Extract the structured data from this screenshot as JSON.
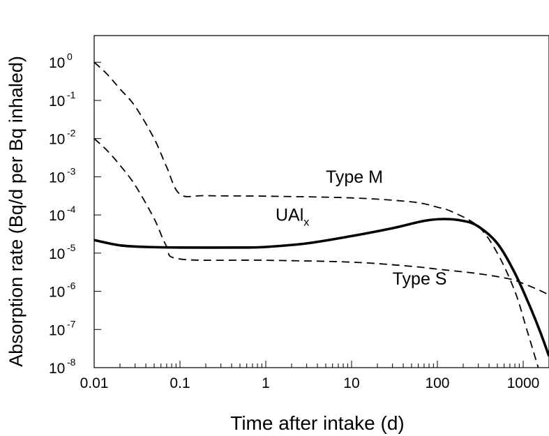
{
  "chart_data": {
    "type": "line",
    "title": "",
    "xlabel": "Time after intake (d)",
    "ylabel": "Absorption rate (Bq/d per Bq inhaled)",
    "x_scale": "log",
    "y_scale": "log",
    "xlim": [
      0.01,
      2000
    ],
    "ylim": [
      1e-08,
      5
    ],
    "grid": false,
    "x_ticks": [
      {
        "value": 0.01,
        "label": "0.01"
      },
      {
        "value": 0.1,
        "label": "0.1"
      },
      {
        "value": 1,
        "label": "1"
      },
      {
        "value": 10,
        "label": "10"
      },
      {
        "value": 100,
        "label": "100"
      },
      {
        "value": 1000,
        "label": "1000"
      }
    ],
    "y_ticks": [
      {
        "value": 1,
        "base": "10",
        "exp": "0"
      },
      {
        "value": 0.1,
        "base": "10",
        "exp": "-1"
      },
      {
        "value": 0.01,
        "base": "10",
        "exp": "-2"
      },
      {
        "value": 0.001,
        "base": "10",
        "exp": "-3"
      },
      {
        "value": 0.0001,
        "base": "10",
        "exp": "-4"
      },
      {
        "value": 1e-05,
        "base": "10",
        "exp": "-5"
      },
      {
        "value": 1e-06,
        "base": "10",
        "exp": "-6"
      },
      {
        "value": 1e-07,
        "base": "10",
        "exp": "-7"
      },
      {
        "value": 1e-08,
        "base": "10",
        "exp": "-8"
      }
    ],
    "series": [
      {
        "name": "Type M",
        "label": {
          "text": "Type M",
          "at": [
            5,
            0.0007
          ]
        },
        "style": "dashed",
        "points": [
          [
            0.01,
            1.0
          ],
          [
            0.014,
            0.5
          ],
          [
            0.02,
            0.2
          ],
          [
            0.03,
            0.07
          ],
          [
            0.05,
            0.01
          ],
          [
            0.07,
            0.0018
          ],
          [
            0.1,
            0.00035
          ],
          [
            0.2,
            0.00032
          ],
          [
            1,
            0.00031
          ],
          [
            10,
            0.00028
          ],
          [
            50,
            0.00022
          ],
          [
            100,
            0.00016
          ],
          [
            150,
            0.00012
          ],
          [
            300,
            5e-05
          ],
          [
            500,
            1e-05
          ],
          [
            800,
            1e-06
          ],
          [
            1100,
            1e-07
          ],
          [
            1500,
            1e-08
          ]
        ]
      },
      {
        "name": "Type S",
        "label": {
          "text": "Type S",
          "at": [
            30,
            1.5e-06
          ]
        },
        "style": "dashed",
        "points": [
          [
            0.01,
            0.01
          ],
          [
            0.014,
            0.005
          ],
          [
            0.02,
            0.002
          ],
          [
            0.03,
            0.0006
          ],
          [
            0.05,
            8e-05
          ],
          [
            0.07,
            1.5e-05
          ],
          [
            0.1,
            7e-06
          ],
          [
            1,
            6.5e-06
          ],
          [
            10,
            5.8e-06
          ],
          [
            50,
            4.5e-06
          ],
          [
            100,
            3.8e-06
          ],
          [
            300,
            2.9e-06
          ],
          [
            700,
            2.1e-06
          ],
          [
            1000,
            1.6e-06
          ],
          [
            1500,
            1.1e-06
          ],
          [
            2000,
            8e-07
          ]
        ]
      },
      {
        "name": "UAl",
        "label": {
          "text": "UAl",
          "sub": "x",
          "at": [
            1.3,
            7e-05
          ]
        },
        "style": "solid-thick",
        "points": [
          [
            0.01,
            2.2e-05
          ],
          [
            0.02,
            1.6e-05
          ],
          [
            0.04,
            1.45e-05
          ],
          [
            0.1,
            1.4e-05
          ],
          [
            0.5,
            1.4e-05
          ],
          [
            1,
            1.45e-05
          ],
          [
            3,
            1.8e-05
          ],
          [
            10,
            2.8e-05
          ],
          [
            30,
            4.5e-05
          ],
          [
            70,
            7e-05
          ],
          [
            120,
            7.8e-05
          ],
          [
            200,
            7e-05
          ],
          [
            300,
            5e-05
          ],
          [
            500,
            1.8e-05
          ],
          [
            800,
            3e-06
          ],
          [
            1200,
            4e-07
          ],
          [
            1600,
            8e-08
          ],
          [
            2000,
            2e-08
          ]
        ]
      }
    ]
  }
}
